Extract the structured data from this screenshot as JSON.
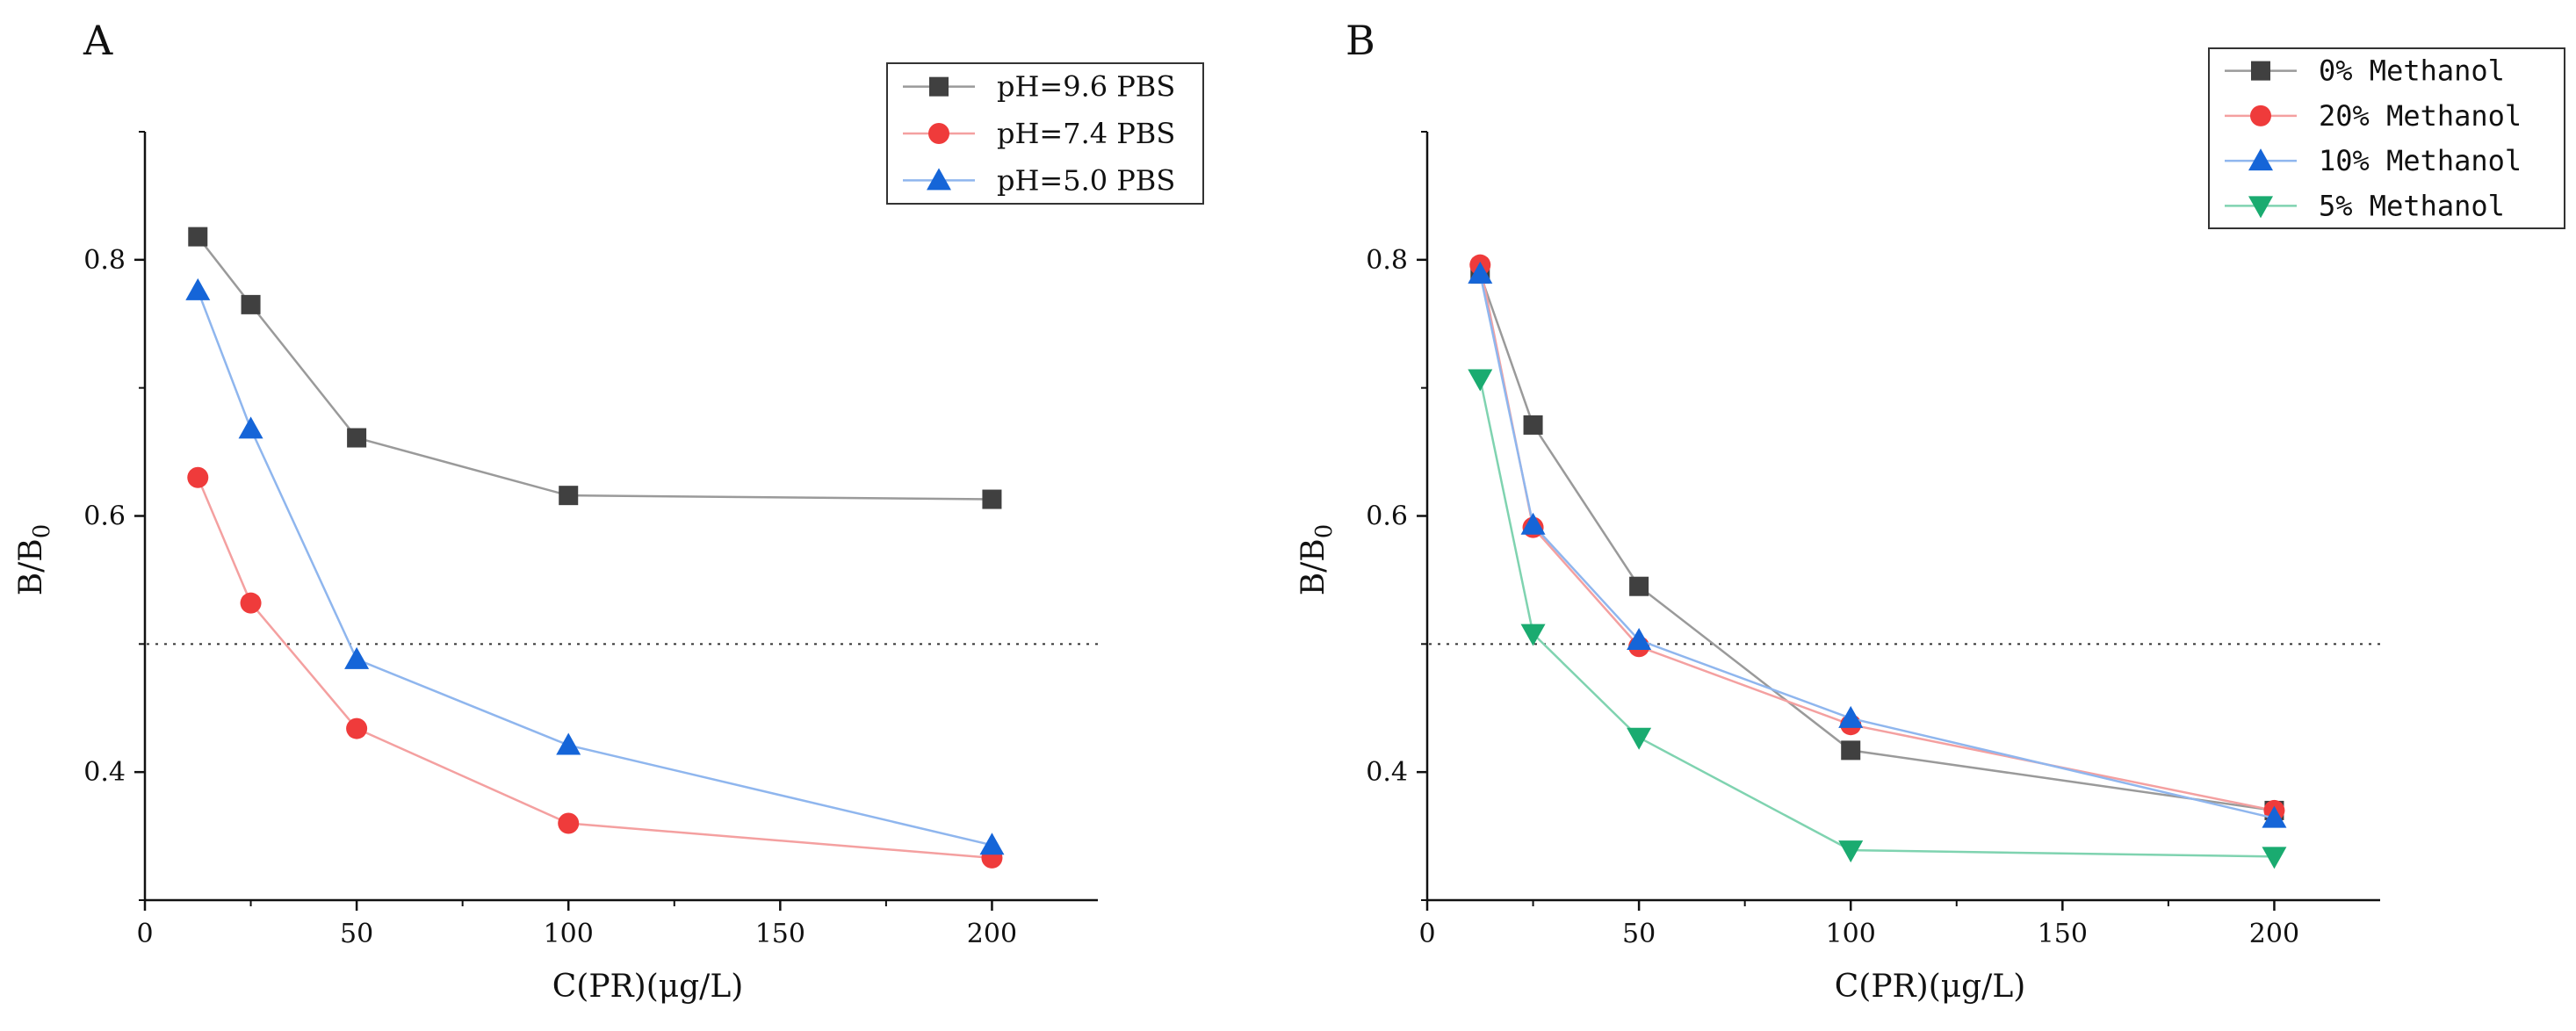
{
  "chart_data": [
    {
      "type": "line",
      "panel_label": "A",
      "xlabel": "C(PR)(μg/L)",
      "ylabel_main": "B/B",
      "ylabel_sub": "0",
      "xlim": [
        0,
        225
      ],
      "ylim": [
        0.3,
        0.9
      ],
      "xticks": [
        0,
        50,
        100,
        150,
        200
      ],
      "yticks": [
        0.4,
        0.6,
        0.8
      ],
      "reference_line": 0.5,
      "x": [
        12.5,
        25,
        50,
        100,
        200
      ],
      "series": [
        {
          "name": "pH=9.6 PBS",
          "marker": "square",
          "color": "#404040",
          "line_color": "#9a9a9a",
          "values": [
            0.818,
            0.765,
            0.661,
            0.616,
            0.613
          ]
        },
        {
          "name": "pH=7.4 PBS",
          "marker": "circle",
          "color": "#ef3b3b",
          "line_color": "#f4a0a0",
          "values": [
            0.63,
            0.532,
            0.434,
            0.36,
            0.333
          ]
        },
        {
          "name": "pH=5.0 PBS",
          "marker": "triangle-up",
          "color": "#1565d8",
          "line_color": "#8fb6ee",
          "values": [
            0.776,
            0.668,
            0.488,
            0.421,
            0.343
          ]
        }
      ]
    },
    {
      "type": "line",
      "panel_label": "B",
      "xlabel": "C(PR)(μg/L)",
      "ylabel_main": "B/B",
      "ylabel_sub": "0",
      "xlim": [
        0,
        225
      ],
      "ylim": [
        0.3,
        0.9
      ],
      "xticks": [
        0,
        50,
        100,
        150,
        200
      ],
      "yticks": [
        0.4,
        0.6,
        0.8
      ],
      "reference_line": 0.5,
      "x": [
        12.5,
        25,
        50,
        100,
        200
      ],
      "series": [
        {
          "name": "0% Methanol",
          "marker": "square",
          "color": "#404040",
          "line_color": "#9a9a9a",
          "values": [
            0.789,
            0.671,
            0.545,
            0.417,
            0.37
          ]
        },
        {
          "name": "20% Methanol",
          "marker": "circle",
          "color": "#ef3b3b",
          "line_color": "#f4a0a0",
          "values": [
            0.796,
            0.591,
            0.498,
            0.437,
            0.37
          ]
        },
        {
          "name": "10% Methanol",
          "marker": "triangle-up",
          "color": "#1565d8",
          "line_color": "#8fb6ee",
          "values": [
            0.789,
            0.593,
            0.503,
            0.442,
            0.364
          ]
        },
        {
          "name": "5% Methanol",
          "marker": "triangle-down",
          "color": "#1aab70",
          "line_color": "#7fd3b0",
          "values": [
            0.707,
            0.508,
            0.427,
            0.339,
            0.334
          ]
        }
      ]
    }
  ]
}
